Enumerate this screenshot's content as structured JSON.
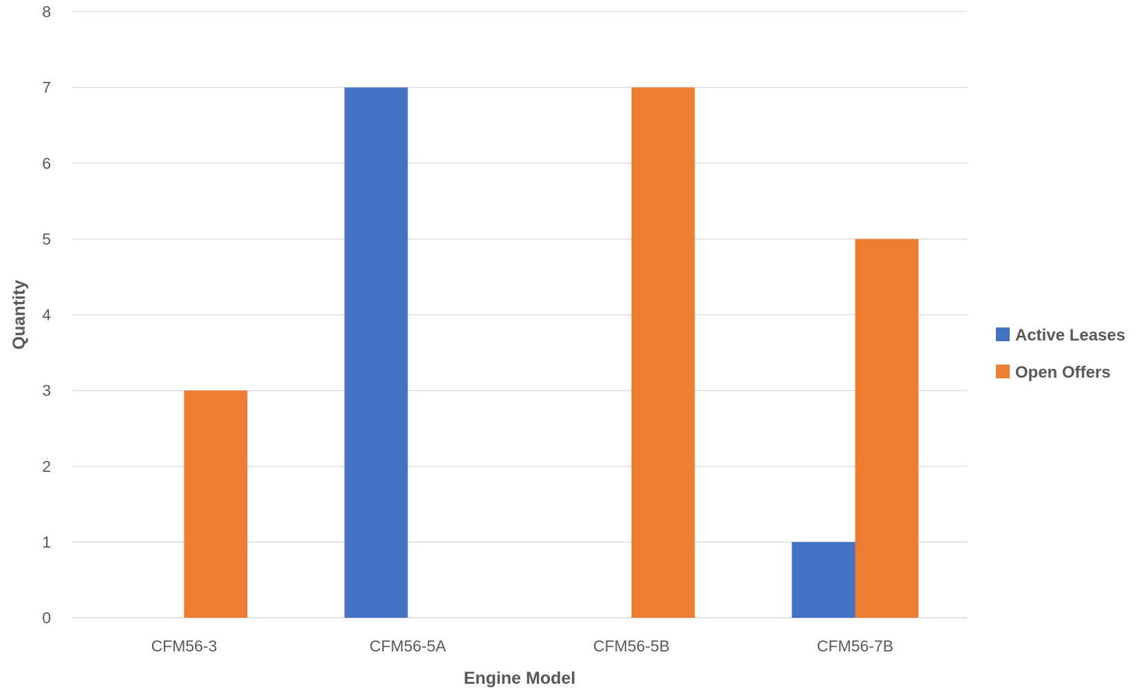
{
  "chart_data": {
    "type": "bar",
    "categories": [
      "CFM56-3",
      "CFM56-5A",
      "CFM56-5B",
      "CFM56-7B"
    ],
    "series": [
      {
        "name": "Active Leases",
        "color": "#4472C4",
        "values": [
          0,
          7,
          0,
          1
        ]
      },
      {
        "name": "Open Offers",
        "color": "#ED7D31",
        "values": [
          3,
          0,
          7,
          5
        ]
      }
    ],
    "xlabel": "Engine Model",
    "ylabel": "Quantity",
    "ylim": [
      0,
      8
    ],
    "yticks": [
      "0",
      "1",
      "2",
      "3",
      "4",
      "5",
      "6",
      "7",
      "8"
    ],
    "grid": true,
    "legend_position": "right"
  }
}
